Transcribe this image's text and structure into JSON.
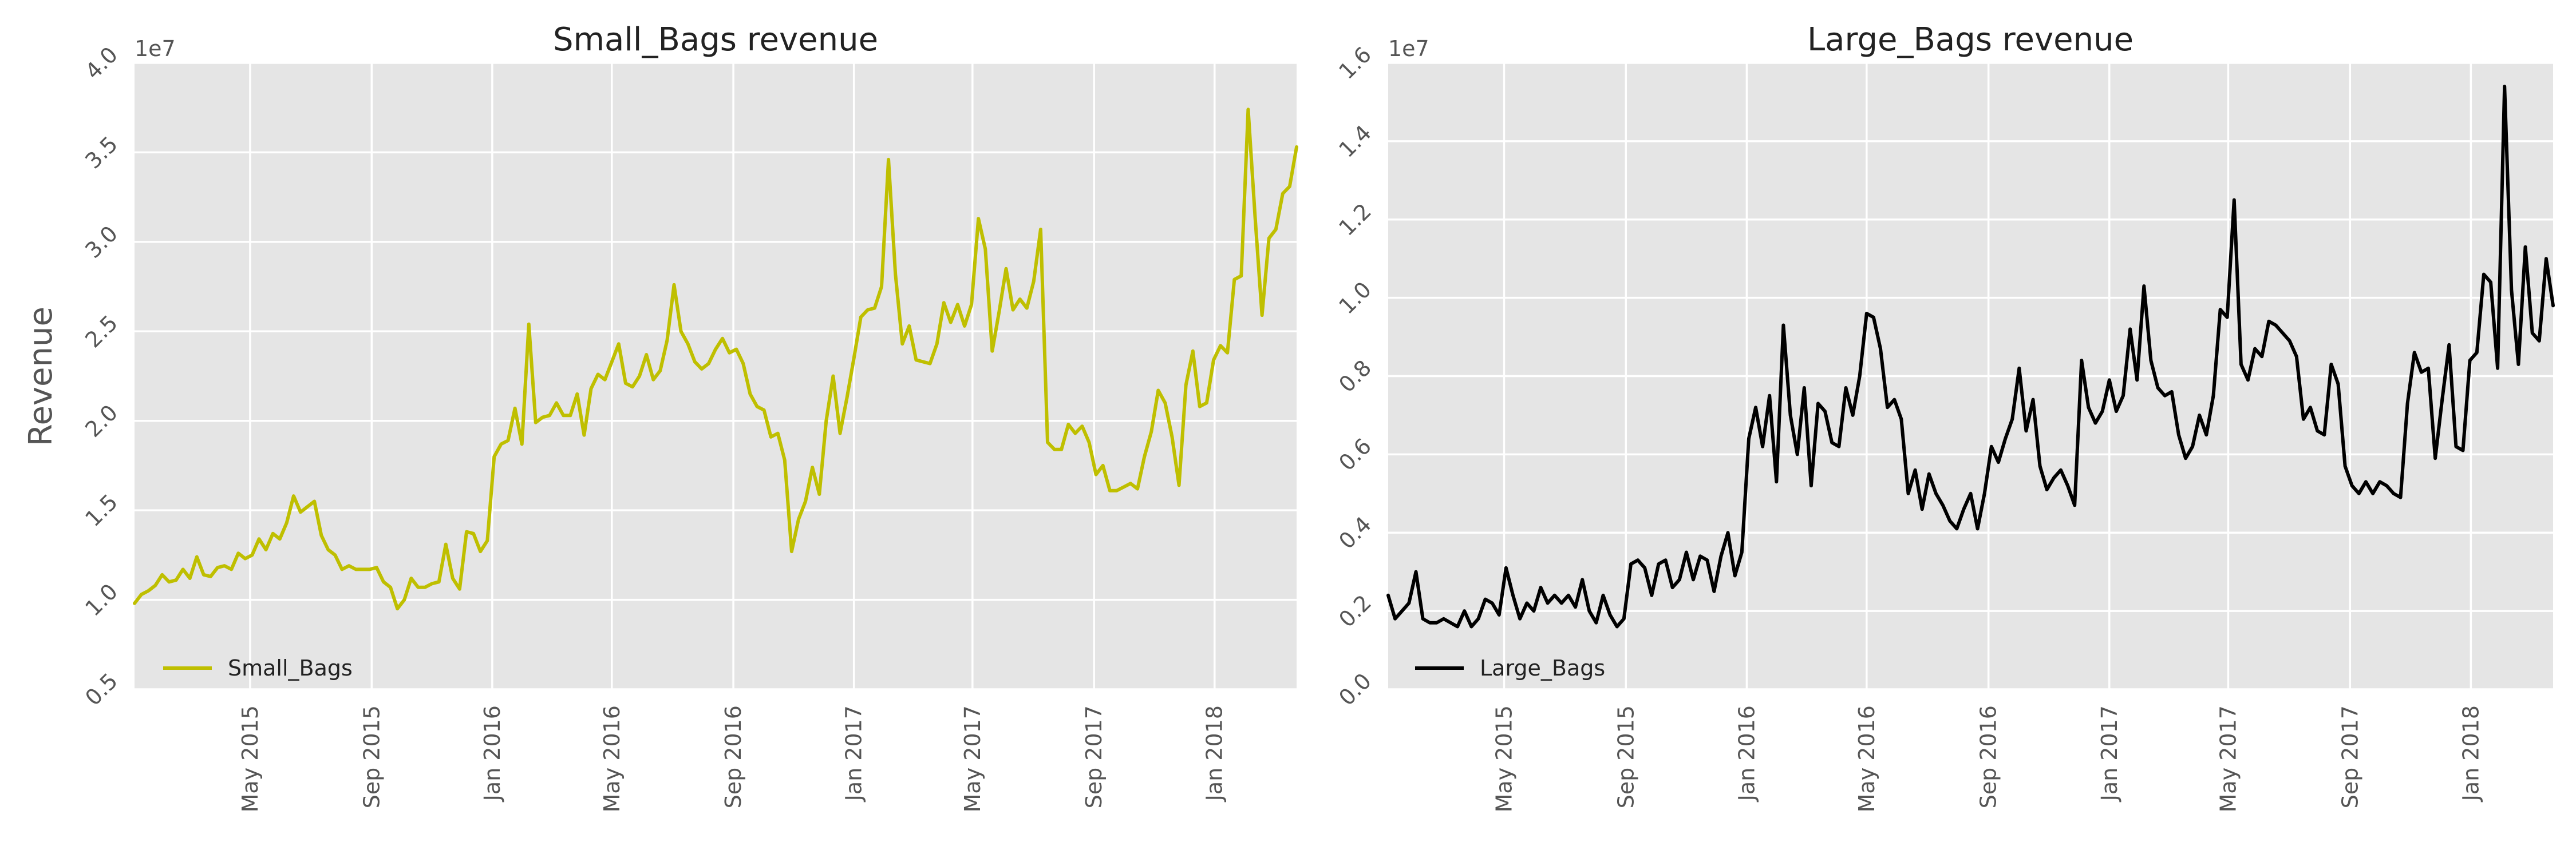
{
  "chart_data": [
    {
      "type": "line",
      "title": "Small_Bags revenue",
      "ylabel": "Revenue",
      "xlabel": "",
      "offset_label": "1e7",
      "color": "#bfbf00",
      "ylim": [
        0.5,
        4.0
      ],
      "yticks": [
        0.5,
        1.0,
        1.5,
        2.0,
        2.5,
        3.0,
        3.5,
        4.0
      ],
      "ytick_labels": [
        "0.5",
        "1.0",
        "1.5",
        "2.0",
        "2.5",
        "3.0",
        "3.5",
        "4.0"
      ],
      "xlim": [
        "2015-01-04",
        "2018-03-25"
      ],
      "xticks": [
        "2015-05-01",
        "2015-09-01",
        "2016-01-01",
        "2016-05-01",
        "2016-09-01",
        "2017-01-01",
        "2017-05-01",
        "2017-09-01",
        "2018-01-01"
      ],
      "xtick_labels": [
        "May 2015",
        "Sep 2015",
        "Jan 2016",
        "May 2016",
        "Sep 2016",
        "Jan 2017",
        "May 2017",
        "Sep 2017",
        "Jan 2018"
      ],
      "legend_position": "lower-left",
      "series": [
        {
          "name": "Small_Bags",
          "x_start": "2015-01-04",
          "x_step_days": 7,
          "values": [
            0.98,
            1.03,
            1.05,
            1.08,
            1.14,
            1.1,
            1.11,
            1.17,
            1.12,
            1.24,
            1.14,
            1.13,
            1.18,
            1.19,
            1.17,
            1.26,
            1.23,
            1.25,
            1.34,
            1.28,
            1.37,
            1.34,
            1.43,
            1.58,
            1.49,
            1.52,
            1.55,
            1.36,
            1.28,
            1.25,
            1.17,
            1.19,
            1.17,
            1.17,
            1.17,
            1.18,
            1.1,
            1.07,
            0.95,
            1.0,
            1.12,
            1.07,
            1.07,
            1.09,
            1.1,
            1.31,
            1.12,
            1.06,
            1.38,
            1.37,
            1.27,
            1.33,
            1.8,
            1.87,
            1.89,
            2.07,
            1.87,
            2.54,
            1.99,
            2.02,
            2.03,
            2.1,
            2.03,
            2.03,
            2.15,
            1.92,
            2.18,
            2.26,
            2.23,
            2.33,
            2.43,
            2.21,
            2.19,
            2.25,
            2.37,
            2.23,
            2.28,
            2.45,
            2.76,
            2.5,
            2.43,
            2.33,
            2.29,
            2.32,
            2.4,
            2.46,
            2.38,
            2.4,
            2.32,
            2.15,
            2.08,
            2.06,
            1.91,
            1.93,
            1.78,
            1.27,
            1.45,
            1.55,
            1.74,
            1.59,
            2.0,
            2.25,
            1.93,
            2.13,
            2.35,
            2.58,
            2.62,
            2.63,
            2.75,
            3.46,
            2.82,
            2.43,
            2.53,
            2.34,
            2.33,
            2.32,
            2.43,
            2.66,
            2.55,
            2.65,
            2.53,
            2.65,
            3.13,
            2.96,
            2.39,
            2.61,
            2.85,
            2.62,
            2.68,
            2.63,
            2.78,
            3.07,
            1.88,
            1.84,
            1.84,
            1.98,
            1.93,
            1.97,
            1.88,
            1.7,
            1.75,
            1.61,
            1.61,
            1.63,
            1.65,
            1.62,
            1.8,
            1.94,
            2.17,
            2.1,
            1.91,
            1.64,
            2.2,
            2.39,
            2.08,
            2.1,
            2.34,
            2.42,
            2.38,
            2.79,
            2.81,
            3.74,
            3.14,
            2.59,
            3.02,
            3.07,
            3.27,
            3.31,
            3.53
          ]
        }
      ]
    },
    {
      "type": "line",
      "title": "Large_Bags revenue",
      "ylabel": "",
      "xlabel": "",
      "offset_label": "1e7",
      "color": "#000000",
      "ylim": [
        0.0,
        1.6
      ],
      "yticks": [
        0.0,
        0.2,
        0.4,
        0.6,
        0.8,
        1.0,
        1.2,
        1.4,
        1.6
      ],
      "ytick_labels": [
        "0.0",
        "0.2",
        "0.4",
        "0.6",
        "0.8",
        "1.0",
        "1.2",
        "1.4",
        "1.6"
      ],
      "xlim": [
        "2015-01-04",
        "2018-03-25"
      ],
      "xticks": [
        "2015-05-01",
        "2015-09-01",
        "2016-01-01",
        "2016-05-01",
        "2016-09-01",
        "2017-01-01",
        "2017-05-01",
        "2017-09-01",
        "2018-01-01"
      ],
      "xtick_labels": [
        "May 2015",
        "Sep 2015",
        "Jan 2016",
        "May 2016",
        "Sep 2016",
        "Jan 2017",
        "May 2017",
        "Sep 2017",
        "Jan 2018"
      ],
      "legend_position": "lower-left",
      "series": [
        {
          "name": "Large_Bags",
          "x_start": "2015-01-04",
          "x_step_days": 7,
          "values": [
            0.24,
            0.18,
            0.2,
            0.22,
            0.3,
            0.18,
            0.17,
            0.17,
            0.18,
            0.17,
            0.16,
            0.2,
            0.16,
            0.18,
            0.23,
            0.22,
            0.19,
            0.31,
            0.24,
            0.18,
            0.22,
            0.2,
            0.26,
            0.22,
            0.24,
            0.22,
            0.24,
            0.21,
            0.28,
            0.2,
            0.17,
            0.24,
            0.19,
            0.16,
            0.18,
            0.32,
            0.33,
            0.31,
            0.24,
            0.32,
            0.33,
            0.26,
            0.28,
            0.35,
            0.28,
            0.34,
            0.33,
            0.25,
            0.34,
            0.4,
            0.29,
            0.35,
            0.64,
            0.72,
            0.62,
            0.75,
            0.53,
            0.93,
            0.7,
            0.6,
            0.77,
            0.52,
            0.73,
            0.71,
            0.63,
            0.62,
            0.77,
            0.7,
            0.8,
            0.96,
            0.95,
            0.87,
            0.72,
            0.74,
            0.69,
            0.5,
            0.56,
            0.46,
            0.55,
            0.5,
            0.47,
            0.43,
            0.41,
            0.46,
            0.5,
            0.41,
            0.5,
            0.62,
            0.58,
            0.64,
            0.69,
            0.82,
            0.66,
            0.74,
            0.57,
            0.51,
            0.54,
            0.56,
            0.52,
            0.47,
            0.84,
            0.72,
            0.68,
            0.71,
            0.79,
            0.71,
            0.75,
            0.92,
            0.79,
            1.03,
            0.84,
            0.77,
            0.75,
            0.76,
            0.65,
            0.59,
            0.62,
            0.7,
            0.65,
            0.75,
            0.97,
            0.95,
            1.25,
            0.83,
            0.79,
            0.87,
            0.85,
            0.94,
            0.93,
            0.91,
            0.89,
            0.85,
            0.69,
            0.72,
            0.66,
            0.65,
            0.83,
            0.78,
            0.57,
            0.52,
            0.5,
            0.53,
            0.5,
            0.53,
            0.52,
            0.5,
            0.49,
            0.73,
            0.86,
            0.81,
            0.82,
            0.59,
            0.74,
            0.88,
            0.62,
            0.61,
            0.84,
            0.86,
            1.06,
            1.04,
            0.82,
            1.54,
            1.02,
            0.83,
            1.13,
            0.91,
            0.89,
            1.1,
            0.98
          ]
        }
      ]
    }
  ]
}
